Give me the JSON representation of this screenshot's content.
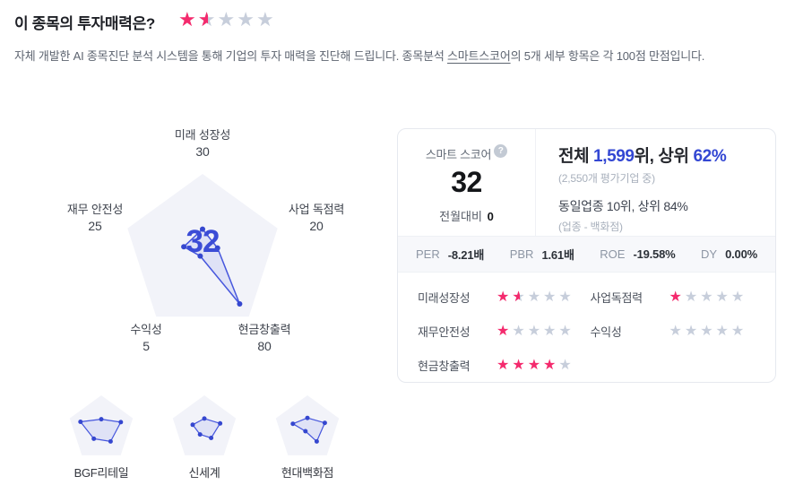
{
  "header": {
    "title": "이 종목의 투자매력은?",
    "rating": 1.5,
    "subtitle_part1": "자체 개발한 AI 종목진단 분석 시스템을 통해 기업의 투자 매력을 진단해 드립니다. 종목분석 ",
    "subtitle_underlined": "스마트스코어",
    "subtitle_part2": "의 5개 세부 항목은 각 100점 만점입니다."
  },
  "colors": {
    "star_pink": "#f42a6d",
    "star_gray": "#c7cedb",
    "accent_blue": "#3347d3",
    "radar_line": "#4656dd",
    "radar_dot": "#3547cf",
    "radar_fill": "rgba(93,108,229,0.12)",
    "pentagon_bg": "#f2f3f9"
  },
  "chart_data": {
    "type": "radar",
    "max": 100,
    "axes": [
      {
        "label": "미래 성장성",
        "value": 30
      },
      {
        "label": "사업 독점력",
        "value": 20
      },
      {
        "label": "현금창출력",
        "value": 80
      },
      {
        "label": "수익성",
        "value": 5
      },
      {
        "label": "재무 안전성",
        "value": 25
      }
    ],
    "center_score": "32",
    "compare": [
      {
        "name": "BGF리테일",
        "values": [
          28,
          62,
          48,
          38,
          66
        ]
      },
      {
        "name": "신세계",
        "values": [
          30,
          50,
          35,
          22,
          37
        ]
      },
      {
        "name": "현대백화점",
        "values": [
          32,
          55,
          48,
          10,
          46
        ]
      }
    ]
  },
  "score_card": {
    "score_label": "스마트 스코어",
    "help_icon": "?",
    "score_value": "32",
    "mom_label": "전월대비",
    "mom_value": "0",
    "overall_prefix": "전체 ",
    "overall_rank": "1,599",
    "overall_mid": "위, 상위 ",
    "overall_pct": "62%",
    "overall_note": "(2,550개 평가기업 중)",
    "sector_line": "동일업종 10위, 상위 84%",
    "sector_note": "(업종 - 백화점)",
    "metrics": [
      {
        "label": "PER",
        "value": "-8.21배"
      },
      {
        "label": "PBR",
        "value": "1.61배"
      },
      {
        "label": "ROE",
        "value": "-19.58%"
      },
      {
        "label": "DY",
        "value": "0.00%"
      }
    ],
    "ratings": [
      {
        "label": "미래성장성",
        "stars": 1.5
      },
      {
        "label": "사업독점력",
        "stars": 1
      },
      {
        "label": "재무안전성",
        "stars": 1
      },
      {
        "label": "수익성",
        "stars": 0
      },
      {
        "label": "현금창출력",
        "stars": 4
      }
    ]
  }
}
